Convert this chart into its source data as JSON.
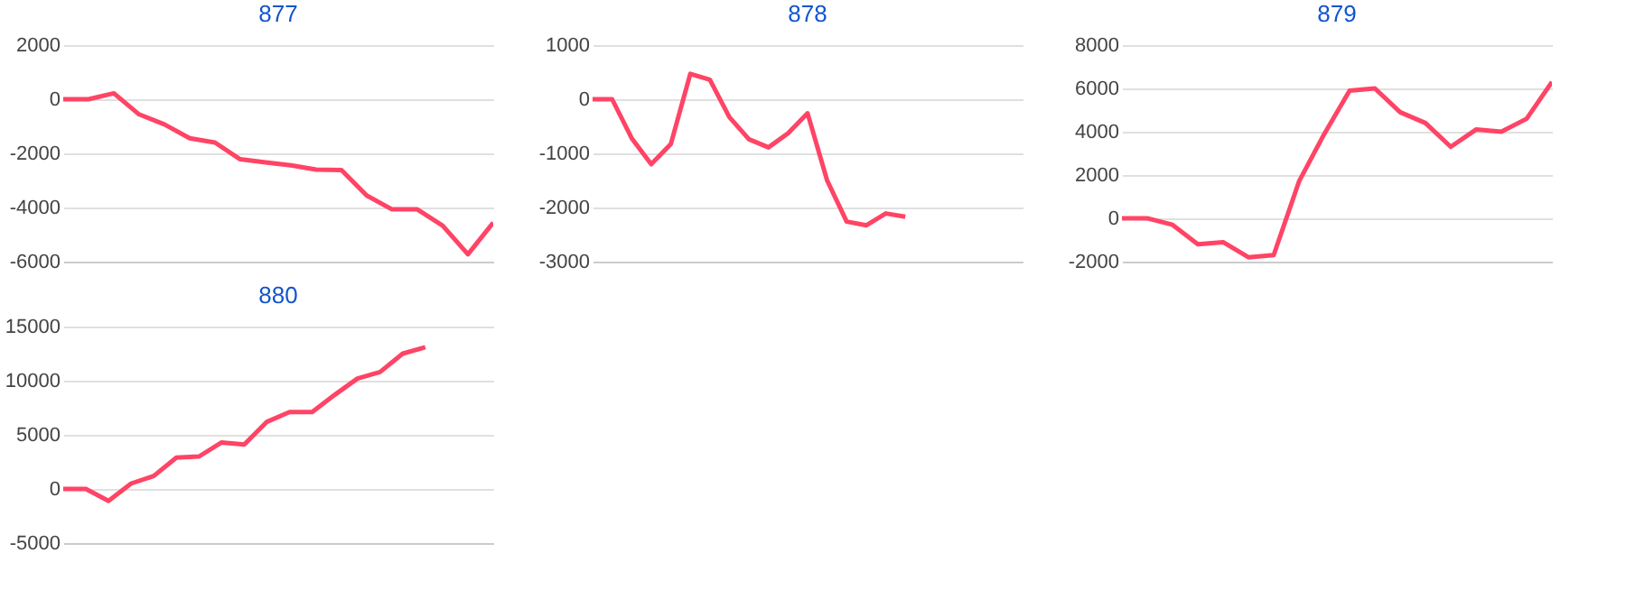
{
  "chart_data": [
    {
      "type": "line",
      "title": "877",
      "categories": [
        null,
        null,
        null,
        null,
        null,
        null,
        null,
        null,
        null,
        null,
        null,
        null,
        null,
        null,
        null,
        null,
        null,
        null
      ],
      "series": [
        {
          "color": "#ff4466",
          "values": [
            0,
            0,
            220,
            -560,
            -930,
            -1440,
            -1600,
            -2220,
            -2330,
            -2440,
            -2600,
            -2620,
            -3560,
            -4070,
            -4070,
            -4670,
            -5730,
            -4560
          ]
        }
      ],
      "ylim": [
        -6000,
        2000
      ],
      "yticks": [
        -6000,
        -4000,
        -2000,
        0,
        2000
      ],
      "grid": "y",
      "tick_labels": "y"
    },
    {
      "type": "line",
      "title": "878",
      "categories": [
        null,
        null,
        null,
        null,
        null,
        null,
        null,
        null,
        null,
        null,
        null,
        null,
        null,
        null,
        null,
        null,
        null,
        null,
        null,
        null,
        null,
        null,
        null
      ],
      "series": [
        {
          "color": "#ff4466",
          "values": [
            0,
            0,
            -720,
            -1200,
            -830,
            470,
            360,
            -330,
            -740,
            -890,
            -630,
            -260,
            -1500,
            -2260,
            -2330,
            -2110,
            -2170,
            null,
            null,
            null,
            null,
            null,
            null
          ]
        }
      ],
      "ylim": [
        -3000,
        1000
      ],
      "yticks": [
        -3000,
        -2000,
        -1000,
        0,
        1000
      ],
      "grid": "y",
      "tick_labels": "y"
    },
    {
      "type": "line",
      "title": "879",
      "categories": [
        null,
        null,
        null,
        null,
        null,
        null,
        null,
        null,
        null,
        null,
        null,
        null,
        null,
        null,
        null,
        null,
        null,
        null
      ],
      "series": [
        {
          "color": "#ff4466",
          "values": [
            0,
            0,
            -300,
            -1200,
            -1100,
            -1800,
            -1700,
            1700,
            3900,
            5900,
            6000,
            4900,
            4400,
            3300,
            4100,
            4000,
            4600,
            6300
          ]
        }
      ],
      "ylim": [
        -2000,
        8000
      ],
      "yticks": [
        -2000,
        0,
        2000,
        4000,
        6000,
        8000
      ],
      "grid": "y",
      "tick_labels": "y"
    },
    {
      "type": "line",
      "title": "880",
      "categories": [
        null,
        null,
        null,
        null,
        null,
        null,
        null,
        null,
        null,
        null,
        null,
        null,
        null,
        null,
        null,
        null,
        null,
        null,
        null,
        null
      ],
      "series": [
        {
          "color": "#ff4466",
          "values": [
            0,
            0,
            -1100,
            500,
            1200,
            2900,
            3000,
            4300,
            4100,
            6200,
            7100,
            7100,
            8700,
            10200,
            10800,
            12500,
            13100,
            null,
            null,
            null
          ]
        }
      ],
      "ylim": [
        -5000,
        15000
      ],
      "yticks": [
        -5000,
        0,
        5000,
        10000,
        15000
      ],
      "grid": "y",
      "tick_labels": "y"
    }
  ]
}
